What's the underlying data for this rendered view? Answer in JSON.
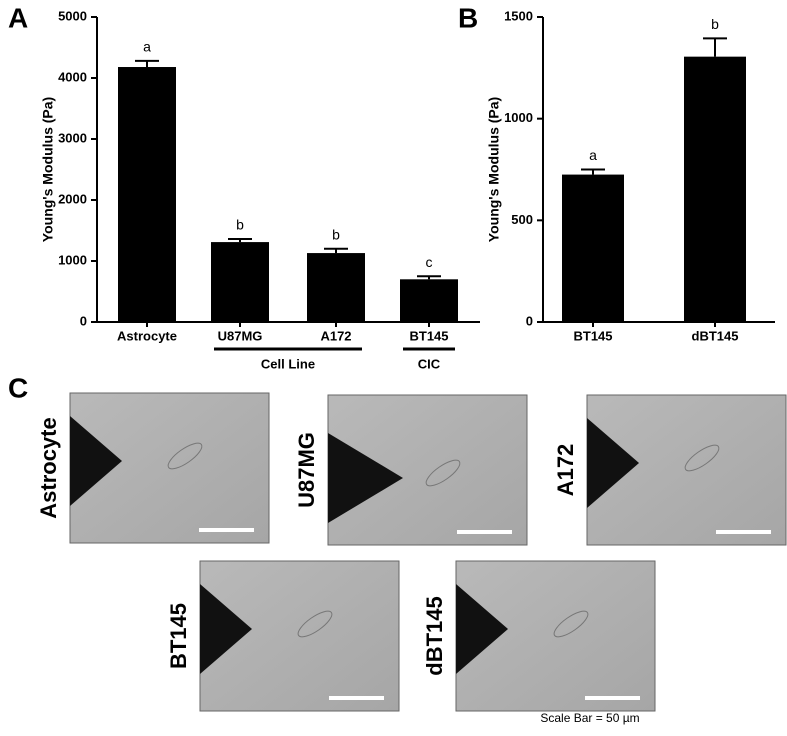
{
  "chart_data": [
    {
      "type": "bar",
      "panel": "A",
      "ylabel": "Young's Modulus (Pa)",
      "categories": [
        "Astrocyte",
        "U87MG",
        "A172",
        "BT145"
      ],
      "values": [
        4180,
        1310,
        1130,
        700
      ],
      "errors": [
        100,
        50,
        70,
        50
      ],
      "annotations": [
        "a",
        "b",
        "b",
        "c"
      ],
      "color": "#000000",
      "groups": [
        {
          "label": "Cell Line",
          "categories": [
            1,
            2
          ]
        },
        {
          "label": "CIC",
          "categories": [
            3
          ]
        }
      ],
      "ylim": [
        0,
        5000
      ],
      "yticks": [
        0,
        1000,
        2000,
        3000,
        4000,
        5000
      ]
    },
    {
      "type": "bar",
      "panel": "B",
      "ylabel": "Young's Modulus (Pa)",
      "categories": [
        "BT145",
        "dBT145"
      ],
      "values": [
        725,
        1305
      ],
      "errors": [
        25,
        90
      ],
      "annotations": [
        "a",
        "b"
      ],
      "color": "#000000",
      "ylim": [
        0,
        1500
      ],
      "yticks": [
        0,
        500,
        1000,
        1500
      ]
    }
  ],
  "image_panel": {
    "panel": "C",
    "images": [
      {
        "label": "Astrocyte"
      },
      {
        "label": "U87MG"
      },
      {
        "label": "A172"
      },
      {
        "label": "BT145"
      },
      {
        "label": "dBT145"
      }
    ],
    "scale_bar": "Scale Bar = 50 µm"
  }
}
